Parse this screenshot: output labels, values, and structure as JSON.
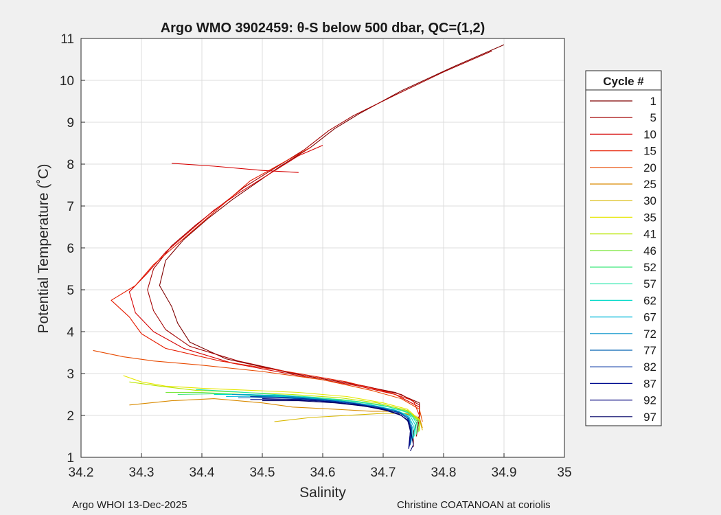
{
  "chart_data": {
    "type": "line",
    "title": "Argo WMO 3902459: θ-S below 500 dbar,  QC=(1,2)",
    "xlabel": "Salinity",
    "ylabel": "Potential Temperature (˚C)",
    "xlim": [
      34.2,
      35
    ],
    "ylim": [
      1,
      11
    ],
    "x_ticks": [
      "34.2",
      "34.3",
      "34.4",
      "34.5",
      "34.6",
      "34.7",
      "34.8",
      "34.9",
      "35"
    ],
    "y_ticks": [
      "1",
      "2",
      "3",
      "4",
      "5",
      "6",
      "7",
      "8",
      "9",
      "10",
      "11"
    ],
    "grid": true,
    "legend": {
      "title": "Cycle #",
      "position": "right",
      "entries": [
        {
          "label": "1",
          "color": "#7f0000"
        },
        {
          "label": "5",
          "color": "#a30000"
        },
        {
          "label": "10",
          "color": "#d50000"
        },
        {
          "label": "15",
          "color": "#e61c00"
        },
        {
          "label": "20",
          "color": "#e84a00"
        },
        {
          "label": "25",
          "color": "#d98a00"
        },
        {
          "label": "30",
          "color": "#d9b800"
        },
        {
          "label": "35",
          "color": "#e6e600"
        },
        {
          "label": "41",
          "color": "#b8e600"
        },
        {
          "label": "46",
          "color": "#7ae63c"
        },
        {
          "label": "52",
          "color": "#3ce67a"
        },
        {
          "label": "57",
          "color": "#1ee6a8"
        },
        {
          "label": "62",
          "color": "#00d9c8"
        },
        {
          "label": "67",
          "color": "#00b8d9"
        },
        {
          "label": "72",
          "color": "#0090c8"
        },
        {
          "label": "77",
          "color": "#0060b0"
        },
        {
          "label": "82",
          "color": "#0030a0"
        },
        {
          "label": "87",
          "color": "#000c90"
        },
        {
          "label": "92",
          "color": "#00007a"
        },
        {
          "label": "97",
          "color": "#000066"
        }
      ]
    },
    "series": [
      {
        "name": "1",
        "color": "#7f0000",
        "points": [
          [
            34.9,
            10.85
          ],
          [
            34.82,
            10.35
          ],
          [
            34.73,
            9.75
          ],
          [
            34.66,
            9.2
          ],
          [
            34.62,
            8.85
          ],
          [
            34.58,
            8.4
          ],
          [
            34.53,
            7.95
          ],
          [
            34.49,
            7.55
          ],
          [
            34.45,
            7.15
          ],
          [
            34.41,
            6.7
          ],
          [
            34.37,
            6.2
          ],
          [
            34.34,
            5.7
          ],
          [
            34.33,
            5.1
          ],
          [
            34.35,
            4.6
          ],
          [
            34.36,
            4.2
          ],
          [
            34.38,
            3.75
          ],
          [
            34.44,
            3.35
          ],
          [
            34.55,
            3.0
          ],
          [
            34.65,
            2.75
          ],
          [
            34.72,
            2.55
          ],
          [
            34.76,
            2.3
          ],
          [
            34.76,
            2.0
          ],
          [
            34.75,
            1.6
          ],
          [
            34.75,
            1.25
          ]
        ]
      },
      {
        "name": "5",
        "color": "#a30000",
        "points": [
          [
            34.88,
            10.7
          ],
          [
            34.8,
            10.2
          ],
          [
            34.72,
            9.65
          ],
          [
            34.65,
            9.15
          ],
          [
            34.61,
            8.8
          ],
          [
            34.57,
            8.35
          ],
          [
            34.52,
            7.9
          ],
          [
            34.47,
            7.45
          ],
          [
            34.43,
            7.0
          ],
          [
            34.39,
            6.55
          ],
          [
            34.35,
            6.05
          ],
          [
            34.32,
            5.5
          ],
          [
            34.31,
            5.0
          ],
          [
            34.32,
            4.5
          ],
          [
            34.34,
            4.05
          ],
          [
            34.38,
            3.65
          ],
          [
            34.46,
            3.3
          ],
          [
            34.57,
            2.95
          ],
          [
            34.67,
            2.7
          ],
          [
            34.73,
            2.5
          ],
          [
            34.76,
            2.25
          ],
          [
            34.76,
            1.95
          ],
          [
            34.755,
            1.5
          ]
        ]
      },
      {
        "name": "10",
        "color": "#d50000",
        "points": [
          [
            34.6,
            8.45
          ],
          [
            34.56,
            8.2
          ],
          [
            34.51,
            7.75
          ],
          [
            34.46,
            7.3
          ],
          [
            34.42,
            6.9
          ],
          [
            34.38,
            6.4
          ],
          [
            34.34,
            5.9
          ],
          [
            34.31,
            5.4
          ],
          [
            34.28,
            4.95
          ],
          [
            34.29,
            4.45
          ],
          [
            34.32,
            4.0
          ],
          [
            34.37,
            3.6
          ],
          [
            34.45,
            3.25
          ],
          [
            34.56,
            2.95
          ],
          [
            34.66,
            2.7
          ],
          [
            34.72,
            2.5
          ],
          [
            34.76,
            2.2
          ],
          [
            34.76,
            1.8
          ]
        ]
      },
      {
        "name": "15",
        "color": "#e61c00",
        "points": [
          [
            34.58,
            8.4
          ],
          [
            34.53,
            8.0
          ],
          [
            34.48,
            7.6
          ],
          [
            34.44,
            7.1
          ],
          [
            34.4,
            6.6
          ],
          [
            34.36,
            6.1
          ],
          [
            34.32,
            5.6
          ],
          [
            34.29,
            5.1
          ],
          [
            34.25,
            4.75
          ],
          [
            34.28,
            4.35
          ],
          [
            34.3,
            3.95
          ],
          [
            34.34,
            3.6
          ],
          [
            34.43,
            3.3
          ],
          [
            34.54,
            3.05
          ],
          [
            34.64,
            2.8
          ],
          [
            34.71,
            2.55
          ],
          [
            34.75,
            2.35
          ],
          [
            34.76,
            2.0
          ]
        ]
      },
      {
        "name": "20",
        "color": "#e84a00",
        "points": [
          [
            34.22,
            3.55
          ],
          [
            34.27,
            3.4
          ],
          [
            34.32,
            3.3
          ],
          [
            34.4,
            3.2
          ],
          [
            34.5,
            3.05
          ],
          [
            34.6,
            2.85
          ],
          [
            34.68,
            2.6
          ],
          [
            34.73,
            2.4
          ],
          [
            34.76,
            2.15
          ],
          [
            34.765,
            1.85
          ]
        ]
      },
      {
        "name": "25",
        "color": "#d98a00",
        "points": [
          [
            34.28,
            2.25
          ],
          [
            34.35,
            2.35
          ],
          [
            34.42,
            2.4
          ],
          [
            34.5,
            2.3
          ],
          [
            34.55,
            2.2
          ],
          [
            34.62,
            2.15
          ],
          [
            34.68,
            2.1
          ],
          [
            34.72,
            2.1
          ],
          [
            34.76,
            1.95
          ],
          [
            34.765,
            1.7
          ]
        ]
      },
      {
        "name": "30",
        "color": "#d9b800",
        "points": [
          [
            34.52,
            1.85
          ],
          [
            34.58,
            1.95
          ],
          [
            34.64,
            2.0
          ],
          [
            34.7,
            2.05
          ],
          [
            34.74,
            2.05
          ],
          [
            34.76,
            1.9
          ],
          [
            34.765,
            1.65
          ]
        ]
      },
      {
        "name": "35",
        "color": "#e6e600",
        "points": [
          [
            34.27,
            2.95
          ],
          [
            34.3,
            2.8
          ],
          [
            34.34,
            2.7
          ],
          [
            34.4,
            2.65
          ],
          [
            34.48,
            2.6
          ],
          [
            34.56,
            2.55
          ],
          [
            34.64,
            2.45
          ],
          [
            34.7,
            2.3
          ],
          [
            34.74,
            2.15
          ],
          [
            34.76,
            1.9
          ],
          [
            34.76,
            1.65
          ]
        ]
      },
      {
        "name": "41",
        "color": "#b8e600",
        "points": [
          [
            34.28,
            2.8
          ],
          [
            34.33,
            2.7
          ],
          [
            34.39,
            2.6
          ],
          [
            34.47,
            2.55
          ],
          [
            34.55,
            2.5
          ],
          [
            34.63,
            2.42
          ],
          [
            34.69,
            2.3
          ],
          [
            34.74,
            2.12
          ],
          [
            34.76,
            1.88
          ],
          [
            34.76,
            1.62
          ]
        ]
      },
      {
        "name": "46",
        "color": "#7ae63c",
        "points": [
          [
            34.34,
            2.55
          ],
          [
            34.4,
            2.55
          ],
          [
            34.47,
            2.5
          ],
          [
            34.55,
            2.45
          ],
          [
            34.63,
            2.38
          ],
          [
            34.69,
            2.27
          ],
          [
            34.74,
            2.1
          ],
          [
            34.76,
            1.85
          ],
          [
            34.758,
            1.6
          ]
        ]
      },
      {
        "name": "52",
        "color": "#3ce67a",
        "points": [
          [
            34.36,
            2.5
          ],
          [
            34.43,
            2.52
          ],
          [
            34.5,
            2.47
          ],
          [
            34.57,
            2.42
          ],
          [
            34.64,
            2.35
          ],
          [
            34.7,
            2.24
          ],
          [
            34.74,
            2.08
          ],
          [
            34.757,
            1.85
          ],
          [
            34.755,
            1.55
          ]
        ]
      },
      {
        "name": "57",
        "color": "#1ee6a8",
        "points": [
          [
            34.39,
            2.62
          ],
          [
            34.45,
            2.57
          ],
          [
            34.52,
            2.5
          ],
          [
            34.59,
            2.43
          ],
          [
            34.66,
            2.33
          ],
          [
            34.71,
            2.2
          ],
          [
            34.745,
            2.05
          ],
          [
            34.755,
            1.82
          ],
          [
            34.752,
            1.5
          ]
        ]
      },
      {
        "name": "62",
        "color": "#00d9c8",
        "points": [
          [
            34.42,
            2.5
          ],
          [
            34.48,
            2.5
          ],
          [
            34.55,
            2.44
          ],
          [
            34.62,
            2.36
          ],
          [
            34.68,
            2.25
          ],
          [
            34.72,
            2.13
          ],
          [
            34.745,
            1.98
          ],
          [
            34.753,
            1.78
          ],
          [
            34.75,
            1.45
          ]
        ]
      },
      {
        "name": "67",
        "color": "#00b8d9",
        "points": [
          [
            34.44,
            2.45
          ],
          [
            34.5,
            2.46
          ],
          [
            34.57,
            2.41
          ],
          [
            34.63,
            2.34
          ],
          [
            34.68,
            2.24
          ],
          [
            34.72,
            2.12
          ],
          [
            34.743,
            1.96
          ],
          [
            34.75,
            1.75
          ],
          [
            34.748,
            1.4
          ]
        ]
      },
      {
        "name": "72",
        "color": "#0090c8",
        "points": [
          [
            34.45,
            2.5
          ],
          [
            34.52,
            2.48
          ],
          [
            34.58,
            2.42
          ],
          [
            34.64,
            2.33
          ],
          [
            34.69,
            2.22
          ],
          [
            34.725,
            2.1
          ],
          [
            34.742,
            1.95
          ],
          [
            34.748,
            1.72
          ],
          [
            34.746,
            1.35
          ]
        ]
      },
      {
        "name": "77",
        "color": "#0060b0",
        "points": [
          [
            34.46,
            2.42
          ],
          [
            34.52,
            2.43
          ],
          [
            34.58,
            2.38
          ],
          [
            34.64,
            2.3
          ],
          [
            34.69,
            2.2
          ],
          [
            34.725,
            2.08
          ],
          [
            34.74,
            1.94
          ],
          [
            34.747,
            1.7
          ],
          [
            34.745,
            1.3
          ]
        ]
      },
      {
        "name": "82",
        "color": "#0030a0",
        "points": [
          [
            34.48,
            2.45
          ],
          [
            34.54,
            2.43
          ],
          [
            34.6,
            2.37
          ],
          [
            34.65,
            2.29
          ],
          [
            34.695,
            2.18
          ],
          [
            34.727,
            2.06
          ],
          [
            34.742,
            1.92
          ],
          [
            34.746,
            1.68
          ],
          [
            34.744,
            1.28
          ]
        ]
      },
      {
        "name": "87",
        "color": "#000c90",
        "points": [
          [
            34.48,
            2.38
          ],
          [
            34.54,
            2.38
          ],
          [
            34.6,
            2.34
          ],
          [
            34.65,
            2.26
          ],
          [
            34.695,
            2.16
          ],
          [
            34.725,
            2.04
          ],
          [
            34.74,
            1.9
          ],
          [
            34.745,
            1.65
          ],
          [
            34.743,
            1.24
          ]
        ]
      },
      {
        "name": "92",
        "color": "#00007a",
        "points": [
          [
            34.5,
            2.4
          ],
          [
            34.56,
            2.38
          ],
          [
            34.61,
            2.33
          ],
          [
            34.66,
            2.25
          ],
          [
            34.7,
            2.15
          ],
          [
            34.727,
            2.03
          ],
          [
            34.741,
            1.88
          ],
          [
            34.745,
            1.62
          ],
          [
            34.742,
            1.2
          ]
        ]
      },
      {
        "name": "97",
        "color": "#000066",
        "points": [
          [
            34.5,
            2.35
          ],
          [
            34.56,
            2.35
          ],
          [
            34.62,
            2.3
          ],
          [
            34.67,
            2.22
          ],
          [
            34.705,
            2.12
          ],
          [
            34.73,
            2.0
          ],
          [
            34.742,
            1.85
          ],
          [
            34.746,
            1.6
          ],
          [
            34.75,
            1.3
          ],
          [
            34.745,
            1.15
          ]
        ]
      },
      {
        "name": "10",
        "color": "#d50000",
        "points": [
          [
            34.35,
            8.02
          ],
          [
            34.42,
            7.95
          ],
          [
            34.5,
            7.85
          ],
          [
            34.56,
            7.8
          ]
        ]
      }
    ]
  },
  "footer": {
    "left": "Argo WHOI 13-Dec-2025",
    "right": "Christine COATANOAN at coriolis"
  }
}
